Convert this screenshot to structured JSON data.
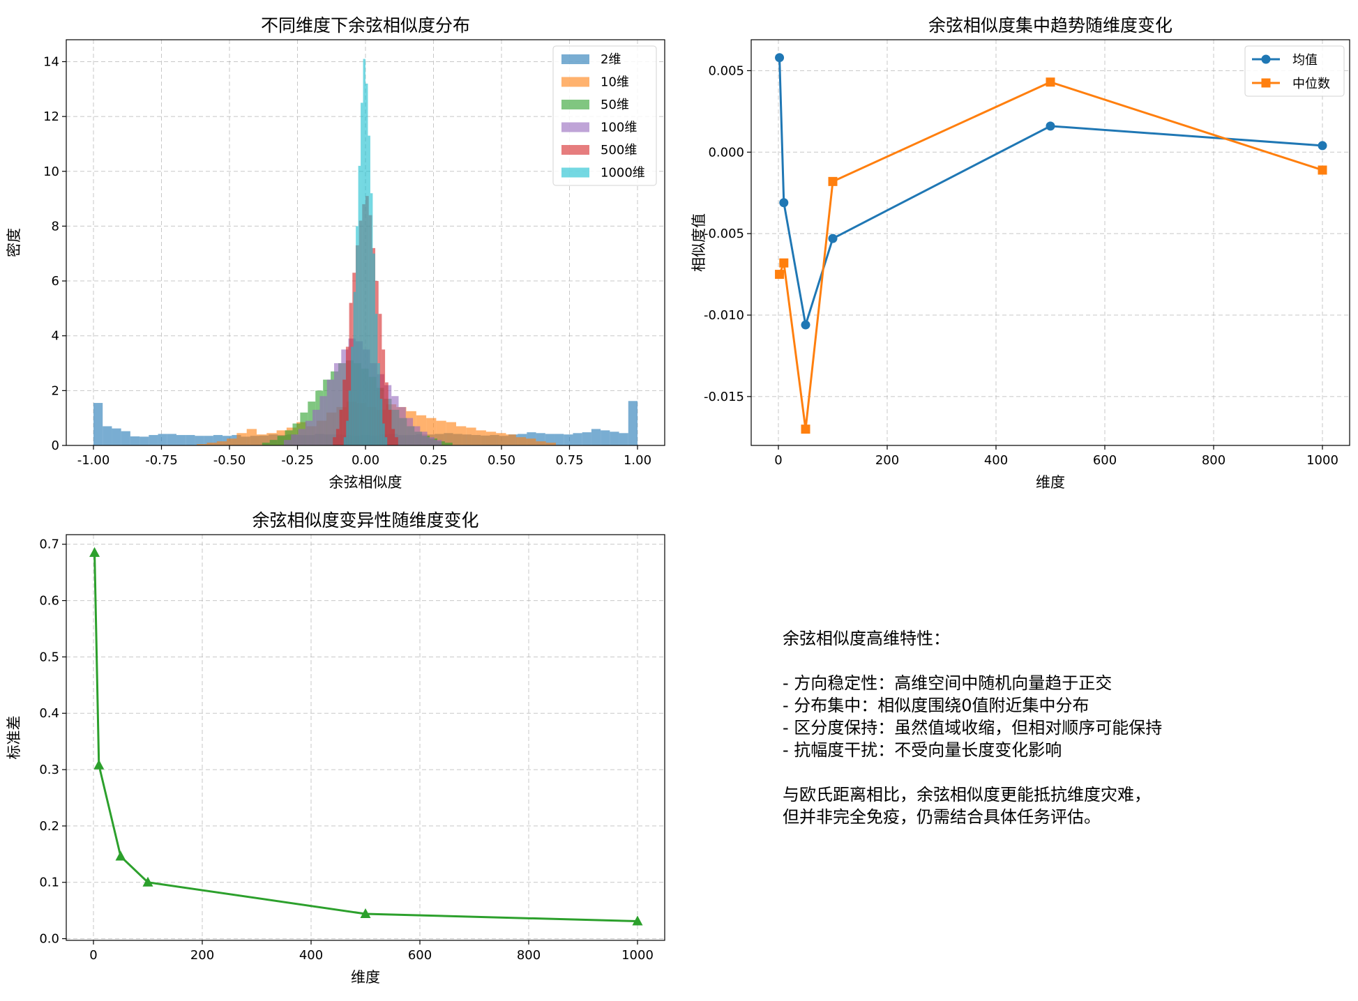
{
  "chart_data": [
    {
      "type": "histogram",
      "title": "不同维度下余弦相似度分布",
      "xlabel": "余弦相似度",
      "ylabel": "密度",
      "xlim": [
        -1.1,
        1.1
      ],
      "ylim": [
        0,
        14.8
      ],
      "xticks": [
        -1.0,
        -0.75,
        -0.5,
        -0.25,
        0.0,
        0.25,
        0.5,
        0.75,
        1.0
      ],
      "xtick_labels": [
        "-1.00",
        "-0.75",
        "-0.50",
        "-0.25",
        "0.00",
        "0.25",
        "0.50",
        "0.75",
        "1.00"
      ],
      "yticks": [
        0,
        2,
        4,
        6,
        8,
        10,
        12,
        14
      ],
      "ytick_labels": [
        "0",
        "2",
        "4",
        "6",
        "8",
        "10",
        "12",
        "14"
      ],
      "grid": true,
      "legend_position": "top-right",
      "series": [
        {
          "name": "2维",
          "color": "#1f77b4",
          "range": [
            -1.0,
            1.0
          ],
          "values": [
            1.55,
            0.7,
            0.62,
            0.52,
            0.33,
            0.32,
            0.38,
            0.42,
            0.42,
            0.38,
            0.38,
            0.35,
            0.35,
            0.38,
            0.35,
            0.38,
            0.32,
            0.35,
            0.36,
            0.4,
            0.38,
            0.4,
            0.38,
            0.38,
            0.42,
            0.4,
            0.4,
            0.38,
            0.36,
            0.38,
            0.36,
            0.4,
            0.42,
            0.38,
            0.38,
            0.4,
            0.4,
            0.42,
            0.45,
            0.42,
            0.4,
            0.38,
            0.36,
            0.38,
            0.35,
            0.4,
            0.42,
            0.48,
            0.45,
            0.42,
            0.42,
            0.4,
            0.45,
            0.48,
            0.6,
            0.55,
            0.5,
            0.45,
            1.62
          ]
        },
        {
          "name": "10维",
          "color": "#ff7f0e",
          "range": [
            -0.62,
            0.7
          ],
          "values": [
            0.05,
            0.1,
            0.15,
            0.25,
            0.45,
            0.6,
            0.4,
            0.45,
            0.55,
            0.65,
            0.85,
            0.7,
            0.9,
            1.2,
            1.4,
            1.6,
            1.55,
            1.4,
            1.3,
            1.5,
            1.4,
            1.25,
            1.1,
            1.0,
            0.9,
            0.85,
            0.7,
            0.65,
            0.55,
            0.5,
            0.45,
            0.4,
            0.3,
            0.25,
            0.15,
            0.1
          ]
        },
        {
          "name": "50维",
          "color": "#2ca02c",
          "range": [
            -0.38,
            0.32
          ],
          "values": [
            0.1,
            0.2,
            0.35,
            0.55,
            0.8,
            1.2,
            1.6,
            2.0,
            2.4,
            2.7,
            3.0,
            3.1,
            3.0,
            2.8,
            2.5,
            2.1,
            1.7,
            1.3,
            1.0,
            0.7,
            0.5,
            0.35,
            0.25,
            0.15,
            0.1
          ]
        },
        {
          "name": "100维",
          "color": "#9467bd",
          "range": [
            -0.3,
            0.28
          ],
          "values": [
            0.2,
            0.4,
            0.6,
            0.9,
            1.3,
            1.8,
            2.4,
            3.0,
            3.5,
            3.9,
            3.8,
            3.5,
            3.0,
            2.6,
            2.2,
            1.8,
            1.4,
            1.0,
            0.7,
            0.5,
            0.3,
            0.2
          ]
        },
        {
          "name": "500维",
          "color": "#d62728",
          "range": [
            -0.12,
            0.12
          ],
          "values": [
            0.3,
            0.6,
            1.3,
            2.4,
            3.6,
            5.2,
            6.3,
            7.3,
            8.2,
            8.8,
            9.1,
            8.4,
            7.2,
            6.0,
            4.8,
            3.5,
            2.3,
            1.3,
            0.6,
            0.3
          ]
        },
        {
          "name": "1000维",
          "color": "#17becf",
          "range": [
            -0.08,
            0.08
          ],
          "values": [
            0.3,
            0.9,
            2.0,
            3.6,
            5.6,
            8.0,
            10.2,
            12.5,
            14.1,
            13.2,
            11.3,
            9.2,
            7.0,
            4.8,
            3.0,
            1.7,
            0.8,
            0.3
          ]
        }
      ]
    },
    {
      "type": "line",
      "title": "余弦相似度集中趋势随维度变化",
      "xlabel": "维度",
      "ylabel": "相似度值",
      "x": [
        2,
        10,
        50,
        100,
        500,
        1000
      ],
      "xlim": [
        -50,
        1050
      ],
      "ylim": [
        -0.018,
        0.0069
      ],
      "xticks": [
        0,
        200,
        400,
        600,
        800,
        1000
      ],
      "xtick_labels": [
        "0",
        "200",
        "400",
        "600",
        "800",
        "1000"
      ],
      "yticks": [
        -0.015,
        -0.01,
        -0.005,
        0.0,
        0.005
      ],
      "ytick_labels": [
        "-0.015",
        "-0.010",
        "-0.005",
        "0.000",
        "0.005"
      ],
      "grid": true,
      "legend_position": "top-right",
      "series": [
        {
          "name": "均值",
          "color": "#1f77b4",
          "marker": "circle",
          "values": [
            0.0058,
            -0.0031,
            -0.0106,
            -0.0053,
            0.0016,
            0.0004
          ]
        },
        {
          "name": "中位数",
          "color": "#ff7f0e",
          "marker": "square",
          "values": [
            -0.0075,
            -0.0068,
            -0.017,
            -0.0018,
            0.0043,
            -0.0011
          ]
        }
      ]
    },
    {
      "type": "line",
      "title": "余弦相似度变异性随维度变化",
      "xlabel": "维度",
      "ylabel": "标准差",
      "x": [
        2,
        10,
        50,
        100,
        500,
        1000
      ],
      "xlim": [
        -50,
        1050
      ],
      "ylim": [
        -0.003,
        0.717
      ],
      "xticks": [
        0,
        200,
        400,
        600,
        800,
        1000
      ],
      "xtick_labels": [
        "0",
        "200",
        "400",
        "600",
        "800",
        "1000"
      ],
      "yticks": [
        0.0,
        0.1,
        0.2,
        0.3,
        0.4,
        0.5,
        0.6,
        0.7
      ],
      "ytick_labels": [
        "0.0",
        "0.1",
        "0.2",
        "0.3",
        "0.4",
        "0.5",
        "0.6",
        "0.7"
      ],
      "grid": true,
      "series": [
        {
          "color": "#2ca02c",
          "marker": "triangle",
          "values": [
            0.685,
            0.308,
            0.146,
            0.1,
            0.044,
            0.031
          ]
        }
      ]
    }
  ],
  "note": {
    "text": "余弦相似度高维特性：\n\n- 方向稳定性：高维空间中随机向量趋于正交\n- 分布集中：相似度围绕0值附近集中分布\n- 区分度保持：虽然值域收缩，但相对顺序可能保持\n- 抗幅度干扰：不受向量长度变化影响\n\n与欧氏距离相比，余弦相似度更能抵抗维度灾难，\n但并非完全免疫，仍需结合具体任务评估。"
  }
}
